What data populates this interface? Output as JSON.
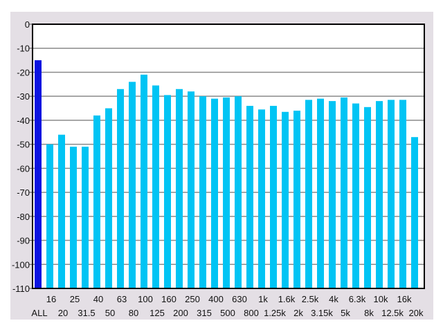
{
  "chart_data": {
    "type": "bar",
    "title": "",
    "xlabel": "",
    "ylabel": "",
    "ylim": [
      -110,
      0
    ],
    "yticks": [
      0,
      -10,
      -20,
      -30,
      -40,
      -50,
      -60,
      -70,
      -80,
      -90,
      -100,
      -110
    ],
    "grid": true,
    "categories": [
      "ALL",
      "16",
      "20",
      "25",
      "31.5",
      "40",
      "50",
      "63",
      "80",
      "100",
      "125",
      "160",
      "200",
      "250",
      "315",
      "400",
      "500",
      "630",
      "800",
      "1k",
      "1.25k",
      "1.6k",
      "2k",
      "2.5k",
      "3.15k",
      "4k",
      "5k",
      "6.3k",
      "8k",
      "10k",
      "12.5k",
      "16k",
      "20k"
    ],
    "values": [
      -15,
      -50,
      -46,
      -51,
      -51,
      -38,
      -35,
      -27,
      -24,
      -21,
      -25.5,
      -29.5,
      -27,
      -28,
      -30,
      -31,
      -30.5,
      -30,
      -34,
      -35.5,
      -34,
      -36.5,
      -36,
      -31.5,
      -31,
      -32,
      -30.5,
      -33,
      -34.5,
      -32,
      -31.5,
      -31.5,
      -47
    ],
    "colors": {
      "all_bar": "#0a14e0",
      "band_bar": "#00c4f4",
      "grid": "#8a8a8a",
      "panel": "#e4dfe5"
    }
  }
}
